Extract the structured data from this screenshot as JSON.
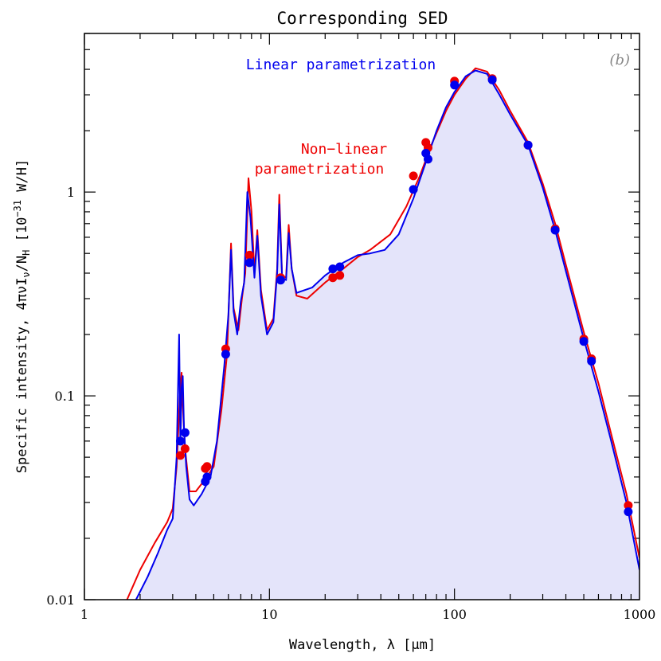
{
  "chart_data": {
    "type": "line",
    "title": "Corresponding SED",
    "xlabel": "Wavelength, λ [μm]",
    "ylabel": "Specific intensity, 4πνI_ν/N_H [10⁻³¹ W/H]",
    "ylabel_parts": {
      "main": "Specific intensity, 4πνI",
      "nu": "ν",
      "slash": "/N",
      "H": "H",
      "bracket_open": " [10",
      "exp": "−31",
      "units": " W/H]"
    },
    "xscale": "log",
    "yscale": "log",
    "xlim": [
      1,
      1000
    ],
    "ylim": [
      0.01,
      6
    ],
    "x_ticks": [
      {
        "value": 1,
        "label": "1"
      },
      {
        "value": 10,
        "label": "10"
      },
      {
        "value": 100,
        "label": "100"
      },
      {
        "value": 1000,
        "label": "1000"
      }
    ],
    "y_ticks": [
      {
        "value": 0.01,
        "label": "0.01"
      },
      {
        "value": 0.1,
        "label": "0.1"
      },
      {
        "value": 1,
        "label": "1"
      }
    ],
    "panel_label": "(b)",
    "colors": {
      "linear": "#0000ee",
      "nonlinear": "#ee0000",
      "fill": "#e4e4fa"
    },
    "annotations": {
      "linear": "Linear parametrization",
      "nonlinear_line1": "Non−linear",
      "nonlinear_line2": "parametrization"
    },
    "series": [
      {
        "name": "Linear parametrization",
        "color": "#0000ee",
        "curve": [
          [
            1.9,
            0.01
          ],
          [
            2.2,
            0.013
          ],
          [
            2.5,
            0.017
          ],
          [
            2.8,
            0.022
          ],
          [
            3.0,
            0.025
          ],
          [
            3.15,
            0.05
          ],
          [
            3.25,
            0.2
          ],
          [
            3.3,
            0.06
          ],
          [
            3.35,
            0.11
          ],
          [
            3.4,
            0.125
          ],
          [
            3.45,
            0.07
          ],
          [
            3.55,
            0.045
          ],
          [
            3.7,
            0.031
          ],
          [
            3.9,
            0.029
          ],
          [
            4.3,
            0.033
          ],
          [
            4.8,
            0.04
          ],
          [
            5.2,
            0.06
          ],
          [
            5.7,
            0.14
          ],
          [
            6.0,
            0.25
          ],
          [
            6.2,
            0.52
          ],
          [
            6.4,
            0.26
          ],
          [
            6.7,
            0.2
          ],
          [
            7.0,
            0.29
          ],
          [
            7.3,
            0.36
          ],
          [
            7.6,
            1.0
          ],
          [
            7.9,
            0.75
          ],
          [
            8.3,
            0.38
          ],
          [
            8.6,
            0.61
          ],
          [
            9.0,
            0.31
          ],
          [
            9.7,
            0.2
          ],
          [
            10.5,
            0.23
          ],
          [
            11.0,
            0.4
          ],
          [
            11.3,
            0.87
          ],
          [
            11.7,
            0.38
          ],
          [
            12.3,
            0.37
          ],
          [
            12.7,
            0.63
          ],
          [
            13.2,
            0.42
          ],
          [
            14.0,
            0.32
          ],
          [
            17,
            0.34
          ],
          [
            20,
            0.39
          ],
          [
            25,
            0.45
          ],
          [
            30,
            0.49
          ],
          [
            35,
            0.5
          ],
          [
            42,
            0.52
          ],
          [
            50,
            0.62
          ],
          [
            60,
            0.93
          ],
          [
            70,
            1.4
          ],
          [
            80,
            2.0
          ],
          [
            90,
            2.6
          ],
          [
            100,
            3.1
          ],
          [
            115,
            3.7
          ],
          [
            130,
            3.95
          ],
          [
            150,
            3.8
          ],
          [
            175,
            3.0
          ],
          [
            200,
            2.4
          ],
          [
            250,
            1.7
          ],
          [
            300,
            1.05
          ],
          [
            350,
            0.65
          ],
          [
            400,
            0.41
          ],
          [
            500,
            0.19
          ],
          [
            600,
            0.105
          ],
          [
            700,
            0.061
          ],
          [
            850,
            0.03
          ],
          [
            1000,
            0.014
          ]
        ],
        "points": [
          [
            3.3,
            0.06
          ],
          [
            3.5,
            0.066
          ],
          [
            4.5,
            0.038
          ],
          [
            4.6,
            0.04
          ],
          [
            5.8,
            0.16
          ],
          [
            7.8,
            0.45
          ],
          [
            11.5,
            0.37
          ],
          [
            22,
            0.42
          ],
          [
            24,
            0.43
          ],
          [
            60,
            1.03
          ],
          [
            70,
            1.55
          ],
          [
            72,
            1.45
          ],
          [
            100,
            3.35
          ],
          [
            160,
            3.55
          ],
          [
            250,
            1.7
          ],
          [
            350,
            0.65
          ],
          [
            500,
            0.185
          ],
          [
            550,
            0.148
          ],
          [
            870,
            0.027
          ]
        ]
      },
      {
        "name": "Non-linear parametrization",
        "color": "#ee0000",
        "curve": [
          [
            1.7,
            0.01
          ],
          [
            2.0,
            0.014
          ],
          [
            2.4,
            0.019
          ],
          [
            2.8,
            0.024
          ],
          [
            3.0,
            0.028
          ],
          [
            3.15,
            0.045
          ],
          [
            3.28,
            0.1
          ],
          [
            3.35,
            0.13
          ],
          [
            3.4,
            0.09
          ],
          [
            3.5,
            0.055
          ],
          [
            3.7,
            0.034
          ],
          [
            4.0,
            0.034
          ],
          [
            4.5,
            0.039
          ],
          [
            5.0,
            0.045
          ],
          [
            5.5,
            0.085
          ],
          [
            5.9,
            0.16
          ],
          [
            6.2,
            0.56
          ],
          [
            6.4,
            0.27
          ],
          [
            6.8,
            0.21
          ],
          [
            7.1,
            0.3
          ],
          [
            7.4,
            0.4
          ],
          [
            7.7,
            1.17
          ],
          [
            8.0,
            0.8
          ],
          [
            8.3,
            0.4
          ],
          [
            8.6,
            0.65
          ],
          [
            9.0,
            0.33
          ],
          [
            9.7,
            0.21
          ],
          [
            10.5,
            0.24
          ],
          [
            11.0,
            0.42
          ],
          [
            11.3,
            0.97
          ],
          [
            11.7,
            0.39
          ],
          [
            12.3,
            0.38
          ],
          [
            12.7,
            0.69
          ],
          [
            13.2,
            0.42
          ],
          [
            14.0,
            0.31
          ],
          [
            16,
            0.3
          ],
          [
            20,
            0.36
          ],
          [
            25,
            0.42
          ],
          [
            30,
            0.48
          ],
          [
            35,
            0.52
          ],
          [
            45,
            0.62
          ],
          [
            55,
            0.85
          ],
          [
            65,
            1.2
          ],
          [
            75,
            1.7
          ],
          [
            90,
            2.5
          ],
          [
            100,
            3.0
          ],
          [
            115,
            3.6
          ],
          [
            130,
            4.05
          ],
          [
            150,
            3.9
          ],
          [
            175,
            3.15
          ],
          [
            200,
            2.5
          ],
          [
            250,
            1.75
          ],
          [
            300,
            1.1
          ],
          [
            350,
            0.7
          ],
          [
            400,
            0.44
          ],
          [
            500,
            0.205
          ],
          [
            600,
            0.115
          ],
          [
            700,
            0.066
          ],
          [
            850,
            0.033
          ],
          [
            1000,
            0.016
          ]
        ],
        "points": [
          [
            3.3,
            0.051
          ],
          [
            3.5,
            0.055
          ],
          [
            4.5,
            0.044
          ],
          [
            4.6,
            0.045
          ],
          [
            5.8,
            0.17
          ],
          [
            7.8,
            0.49
          ],
          [
            11.5,
            0.38
          ],
          [
            22,
            0.38
          ],
          [
            24,
            0.39
          ],
          [
            60,
            1.2
          ],
          [
            70,
            1.75
          ],
          [
            72,
            1.65
          ],
          [
            100,
            3.5
          ],
          [
            160,
            3.6
          ],
          [
            250,
            1.7
          ],
          [
            350,
            0.66
          ],
          [
            500,
            0.19
          ],
          [
            550,
            0.152
          ],
          [
            870,
            0.029
          ]
        ]
      }
    ]
  }
}
